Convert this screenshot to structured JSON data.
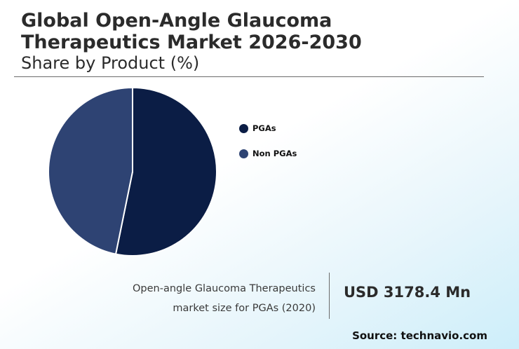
{
  "header": {
    "title": "Global Open-Angle Glaucoma Therapeutics Market 2026-2030",
    "subtitle": "Share by Product (%)"
  },
  "chart_data": {
    "type": "pie",
    "title": "Share by Product (%)",
    "categories": [
      "PGAs",
      "Non PGAs"
    ],
    "values": [
      53.2,
      46.8
    ],
    "colors": [
      "#0b1d45",
      "#2e4373"
    ],
    "legend": "right"
  },
  "callout": {
    "caption_line1": "Open-angle Glaucoma Therapeutics",
    "caption_line2": "market size for PGAs (2020)",
    "value": "USD 3178.4 Mn"
  },
  "footer": {
    "source": "Source: technavio.com"
  }
}
